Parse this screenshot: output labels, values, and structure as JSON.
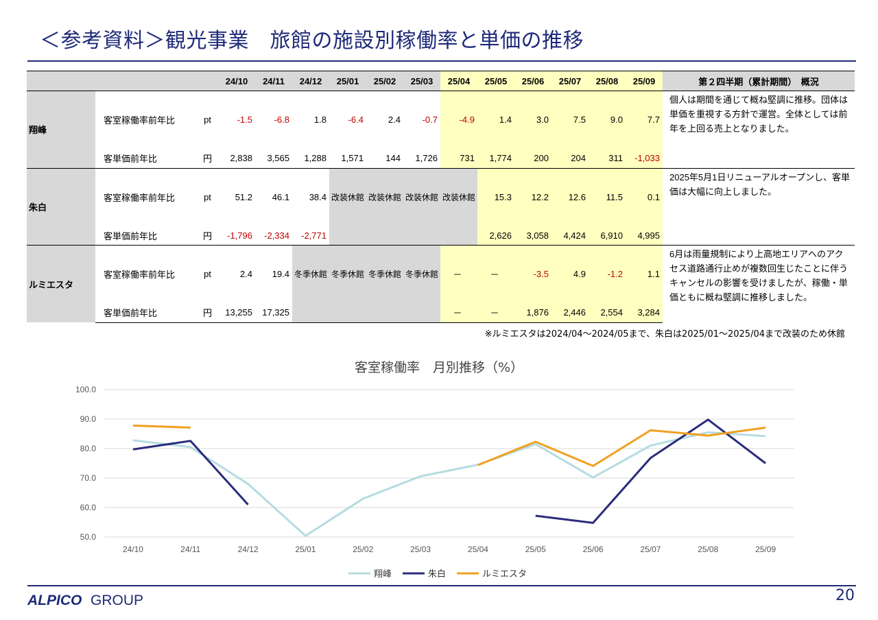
{
  "header": {
    "title": "＜参考資料＞観光事業　旅館の施設別稼働率と単価の推移"
  },
  "table": {
    "months": [
      "24/10",
      "24/11",
      "24/12",
      "25/01",
      "25/02",
      "25/03",
      "25/04",
      "25/05",
      "25/06",
      "25/07",
      "25/08",
      "25/09"
    ],
    "note_header": "第２四半期（累計期間）　概況",
    "facilities": [
      {
        "name": "翔峰",
        "rows": [
          {
            "label": "客室稼働率前年比",
            "unit": "pt",
            "values": [
              "-1.5",
              "-6.8",
              "1.8",
              "-6.4",
              "2.4",
              "-0.7",
              "-4.9",
              "1.4",
              "3.0",
              "7.5",
              "9.0",
              "7.7"
            ]
          },
          {
            "label": "客単価前年比",
            "unit": "円",
            "values": [
              "2,838",
              "3,565",
              "1,288",
              "1,571",
              "144",
              "1,726",
              "731",
              "1,774",
              "200",
              "204",
              "311",
              "-1,033"
            ]
          }
        ],
        "note": "個人は期間を通じて概ね堅調に推移。団体は単価を重視する方針で運営。全体としては前年を上回る売上となりました。"
      },
      {
        "name": "朱白",
        "rows": [
          {
            "label": "客室稼働率前年比",
            "unit": "pt",
            "values": [
              "51.2",
              "46.1",
              "38.4",
              "改装休館",
              "改装休館",
              "改装休館",
              "改装休館",
              "15.3",
              "12.2",
              "12.6",
              "11.5",
              "0.1"
            ]
          },
          {
            "label": "客単価前年比",
            "unit": "円",
            "values": [
              "-1,796",
              "-2,334",
              "-2,771",
              "",
              "",
              "",
              "",
              "2,626",
              "3,058",
              "4,424",
              "6,910",
              "4,995"
            ]
          }
        ],
        "note": "2025年5月1日リニューアルオープンし、客単価は大幅に向上しました。"
      },
      {
        "name": "ルミエスタ",
        "rows": [
          {
            "label": "客室稼働率前年比",
            "unit": "pt",
            "values": [
              "2.4",
              "19.4",
              "冬季休館",
              "冬季休館",
              "冬季休館",
              "冬季休館",
              "－",
              "－",
              "-3.5",
              "4.9",
              "-1.2",
              "1.1"
            ]
          },
          {
            "label": "客単価前年比",
            "unit": "円",
            "values": [
              "13,255",
              "17,325",
              "",
              "",
              "",
              "",
              "－",
              "－",
              "1,876",
              "2,446",
              "2,554",
              "3,284"
            ]
          }
        ],
        "note": "6月は雨量規制により上高地エリアへのアクセス道路通行止めが複数回生じたことに伴うキャンセルの影響を受けましたが、稼働・単価ともに概ね堅調に推移しました。"
      }
    ],
    "footnote": "※ルミエスタは2024/04～2024/05まで、朱白は2025/01～2025/04まで改装のため休館"
  },
  "chart_data": {
    "type": "line",
    "title": "客室稼働率　月別推移（%）",
    "categories": [
      "24/10",
      "24/11",
      "24/12",
      "25/01",
      "25/02",
      "25/03",
      "25/04",
      "25/05",
      "25/06",
      "25/07",
      "25/08",
      "25/09"
    ],
    "ylim": [
      50,
      100
    ],
    "yticks": [
      "100.0",
      "90.0",
      "80.0",
      "70.0",
      "60.0",
      "50.0"
    ],
    "legend_position": "bottom",
    "series": [
      {
        "name": "翔峰",
        "color": "#b4dce0",
        "values": [
          82.8,
          80.5,
          68.0,
          50.4,
          63.0,
          70.6,
          74.5,
          81.5,
          70.2,
          81.0,
          85.5,
          84.2
        ]
      },
      {
        "name": "朱白",
        "color": "#2b2b7c",
        "values": [
          79.7,
          82.6,
          61.0,
          null,
          null,
          null,
          null,
          57.2,
          54.8,
          76.8,
          89.8,
          75.0
        ]
      },
      {
        "name": "ルミエスタ",
        "color": "#f0a020",
        "values": [
          87.8,
          87.1,
          null,
          null,
          null,
          null,
          74.4,
          82.3,
          74.1,
          86.2,
          84.4,
          87.1
        ]
      }
    ]
  },
  "footer": {
    "logo_text": "ALPICO GROUP",
    "page_number": "20"
  }
}
